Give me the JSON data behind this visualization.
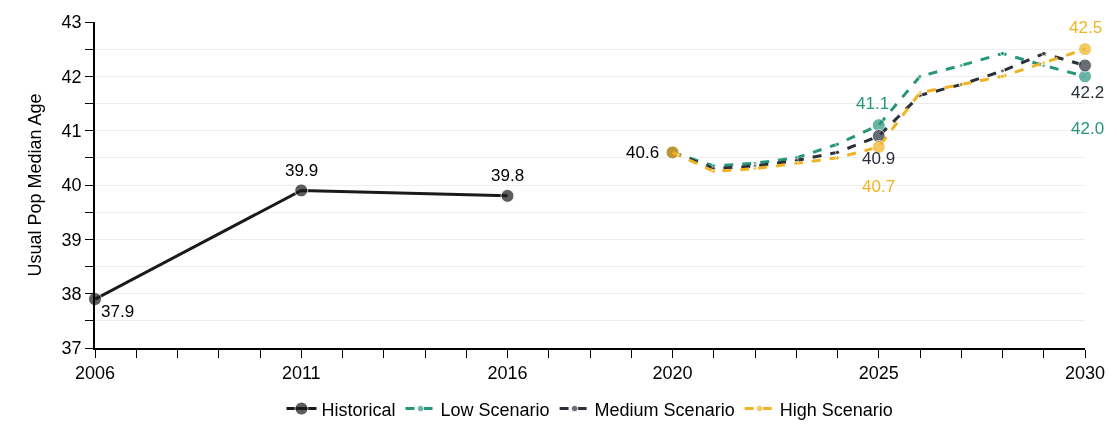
{
  "chart_data": {
    "type": "line",
    "ylabel": "Usual Pop Median Age",
    "xlim": [
      2006,
      2030
    ],
    "ylim": [
      37,
      43
    ],
    "xticks": [
      2006,
      {
        "value": 2007,
        "label": null
      },
      {
        "value": 2008,
        "label": null
      },
      {
        "value": 2009,
        "label": null
      },
      {
        "value": 2010,
        "label": null
      },
      2011,
      {
        "value": 2012,
        "label": null
      },
      {
        "value": 2013,
        "label": null
      },
      {
        "value": 2014,
        "label": null
      },
      {
        "value": 2015,
        "label": null
      },
      2016,
      {
        "value": 2017,
        "label": null
      },
      {
        "value": 2018,
        "label": null
      },
      {
        "value": 2019,
        "label": null
      },
      2020,
      {
        "value": 2021,
        "label": null
      },
      {
        "value": 2022,
        "label": null
      },
      {
        "value": 2023,
        "label": null
      },
      {
        "value": 2024,
        "label": null
      },
      2025,
      {
        "value": 2026,
        "label": null
      },
      {
        "value": 2027,
        "label": null
      },
      {
        "value": 2028,
        "label": null
      },
      {
        "value": 2029,
        "label": null
      },
      2030
    ],
    "yticks": [
      37,
      {
        "value": 37.5,
        "label": null
      },
      38,
      {
        "value": 38.5,
        "label": null
      },
      39,
      {
        "value": 39.5,
        "label": null
      },
      40,
      {
        "value": 40.5,
        "label": null
      },
      41,
      {
        "value": 41.5,
        "label": null
      },
      42,
      {
        "value": 42.5,
        "label": null
      },
      43
    ],
    "grid": "y",
    "legend": "bottom",
    "marker": "circle",
    "series": [
      {
        "name": "Historical",
        "color": "#1a1a1a",
        "line_style": "solid",
        "x": [
          2006,
          2011,
          2016
        ],
        "values": [
          37.9,
          39.9,
          39.8
        ],
        "value_labels": [
          "37.9",
          "39.9",
          "39.8"
        ]
      },
      {
        "name": "Low Scenario",
        "color": "#26957a",
        "line_style": "dashed",
        "x": [
          2020,
          2021,
          2022,
          2023,
          2024,
          2025,
          2026,
          2027,
          2028,
          2029,
          2030
        ],
        "values": [
          40.6,
          40.35,
          40.4,
          40.5,
          40.75,
          41.1,
          42.0,
          42.2,
          42.42,
          42.2,
          42.0
        ],
        "value_labels": [
          null,
          null,
          null,
          null,
          null,
          "41.1",
          null,
          null,
          null,
          null,
          "42.0"
        ]
      },
      {
        "name": "Medium Scenario",
        "color": "#2b2f3a",
        "line_style": "dashed",
        "x": [
          2020,
          2021,
          2022,
          2023,
          2024,
          2025,
          2026,
          2027,
          2028,
          2029,
          2030
        ],
        "values": [
          40.6,
          40.3,
          40.35,
          40.45,
          40.6,
          40.9,
          41.65,
          41.85,
          42.1,
          42.42,
          42.2
        ],
        "value_labels": [
          null,
          null,
          null,
          null,
          null,
          "40.9",
          null,
          null,
          null,
          null,
          "42.2"
        ]
      },
      {
        "name": "High Scenario",
        "color": "#f0b323",
        "line_style": "dashed",
        "x": [
          2020,
          2021,
          2022,
          2023,
          2024,
          2025,
          2026,
          2027,
          2028,
          2029,
          2030
        ],
        "values": [
          40.6,
          40.25,
          40.3,
          40.4,
          40.5,
          40.7,
          41.7,
          41.85,
          42.0,
          42.25,
          42.5
        ],
        "value_labels": [
          "40.6",
          null,
          null,
          null,
          null,
          "40.7",
          null,
          null,
          null,
          null,
          "42.5"
        ]
      }
    ]
  }
}
